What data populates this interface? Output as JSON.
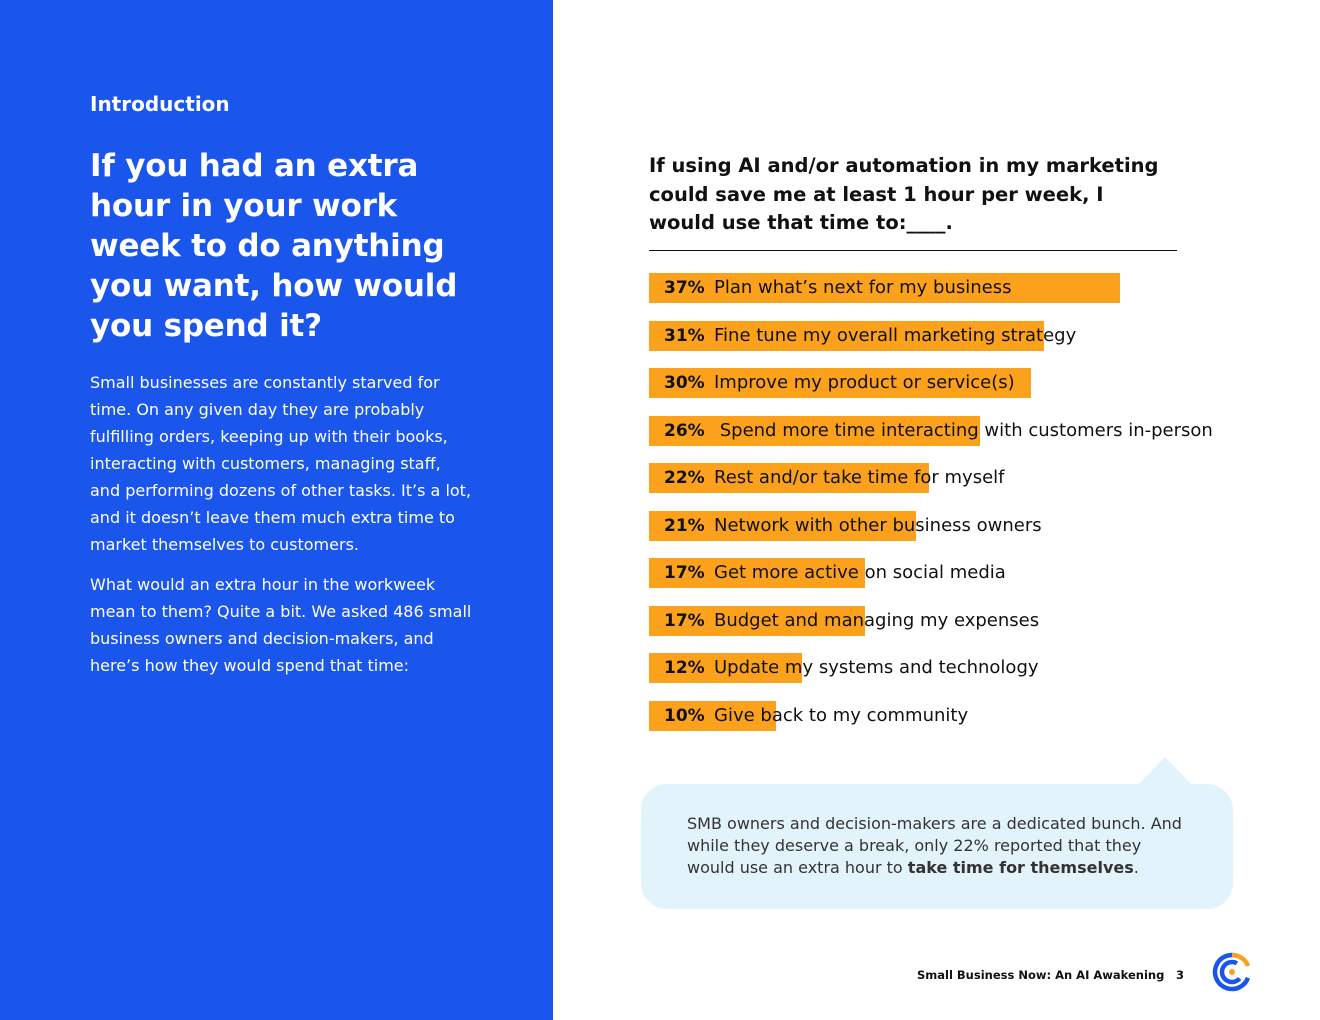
{
  "left": {
    "eyebrow": "Introduction",
    "headline": "If you had an extra hour in your work week to do anything you want, how would you spend it?",
    "paragraph1": "Small businesses are constantly starved for time. On any given day they are probably fulfilling orders, keeping up with their books, interacting with customers, managing staff, and performing dozens of other tasks. It’s a lot, and it doesn’t leave them much extra time to market themselves to customers.",
    "paragraph2": "What would an extra hour in the workweek mean to them? Quite a bit. We asked 486 small business owners and decision-makers, and here’s how they would spend that time:"
  },
  "chart_data": {
    "type": "bar",
    "orientation": "horizontal",
    "title": "If using AI and/or automation in my marketing could save me at least 1 hour per week, I would use that time to:____.",
    "categories": [
      "Plan what’s next for my business",
      "Fine tune my overall marketing strategy",
      "Improve my product or service(s)",
      " Spend more time interacting with customers in-person",
      "Rest and/or take time for myself",
      "Network with other business owners",
      "Get more active on social media",
      "Budget and managing my expenses",
      "Update my systems and technology",
      "Give back to my community"
    ],
    "values": [
      37,
      31,
      30,
      26,
      22,
      21,
      17,
      17,
      12,
      10
    ],
    "value_labels": [
      "37%",
      "31%",
      "30%",
      "26%",
      "22%",
      "21%",
      "17%",
      "17%",
      "12%",
      "10%"
    ],
    "bar_color": "#fba11b",
    "xlim": [
      0,
      37
    ]
  },
  "callout": {
    "text_before": "SMB owners and decision-makers are a dedicated bunch. And while they deserve a break, only 22% reported that they would use an extra hour to ",
    "text_bold": "take time for themselves",
    "text_after": "."
  },
  "footer": {
    "title": "Small Business Now: An AI Awakening",
    "page_number": "3"
  },
  "colors": {
    "left_panel": "#1a56eb",
    "bar": "#fba11b",
    "callout_bg": "#e2f3fc",
    "logo_blue": "#1a56eb",
    "logo_orange": "#fba11b"
  },
  "icons": {
    "logo": "constant-contact-logo-icon"
  }
}
